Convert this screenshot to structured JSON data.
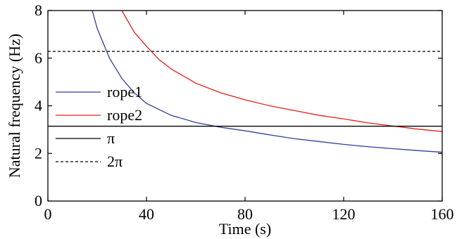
{
  "chart_data": {
    "type": "line",
    "title": "",
    "xlabel": "Time (s)",
    "ylabel": "Natural frequency (Hz)",
    "xlim": [
      0,
      160
    ],
    "ylim": [
      0,
      8
    ],
    "x_ticks": [
      0,
      40,
      80,
      120,
      160
    ],
    "y_ticks": [
      0,
      2,
      4,
      6,
      8
    ],
    "x_tick_labels": [
      "0",
      "40",
      "80",
      "120",
      "160"
    ],
    "y_tick_labels": [
      "0",
      "2",
      "4",
      "6",
      "8"
    ],
    "grid": false,
    "legend_position": "left",
    "series": [
      {
        "name": "rope1",
        "color": "#2b3f9b",
        "style": "solid",
        "x": [
          18,
          20,
          25,
          30,
          35,
          40,
          50,
          60,
          70,
          80,
          90,
          100,
          110,
          120,
          130,
          140,
          150,
          160
        ],
        "values": [
          8.0,
          7.25,
          6.0,
          5.15,
          4.55,
          4.1,
          3.6,
          3.3,
          3.1,
          2.95,
          2.78,
          2.62,
          2.5,
          2.38,
          2.28,
          2.2,
          2.12,
          2.05
        ]
      },
      {
        "name": "rope2",
        "color": "#e0201b",
        "style": "solid",
        "x": [
          30,
          35,
          40,
          45,
          50,
          60,
          70,
          80,
          90,
          100,
          110,
          120,
          130,
          140,
          150,
          160
        ],
        "values": [
          8.0,
          7.1,
          6.5,
          5.95,
          5.55,
          4.95,
          4.55,
          4.25,
          4.0,
          3.8,
          3.6,
          3.45,
          3.28,
          3.15,
          3.02,
          2.92
        ]
      },
      {
        "name": "π",
        "color": "#000000",
        "style": "solid",
        "x": [
          0,
          160
        ],
        "values": [
          3.1416,
          3.1416
        ]
      },
      {
        "name": "2π",
        "color": "#000000",
        "style": "dashed",
        "x": [
          0,
          160
        ],
        "values": [
          6.2832,
          6.2832
        ]
      }
    ]
  }
}
